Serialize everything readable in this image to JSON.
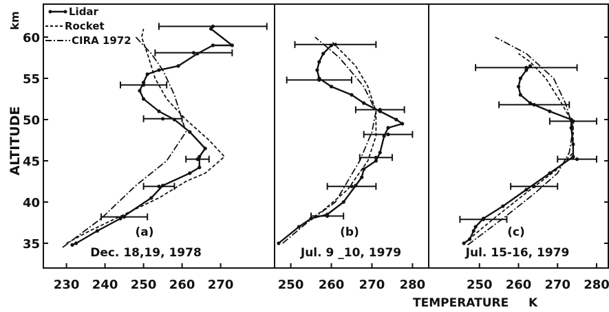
{
  "figure": {
    "y_axis_label": "ALTITUDE",
    "y_axis_unit": "km",
    "x_axis_label": "TEMPERATURE",
    "x_axis_unit": "K"
  },
  "legend": {
    "items": [
      {
        "label": "Lidar",
        "style": "solid-dots"
      },
      {
        "label": "Rocket",
        "style": "dashed"
      },
      {
        "label": "CIRA 1972",
        "style": "dash-dot"
      }
    ]
  },
  "chart_data": [
    {
      "type": "line",
      "panel_label": "(a)",
      "date": "Dec. 18,19, 1978",
      "xlabel": "TEMPERATURE K",
      "ylabel": "ALTITUDE km",
      "xlim": [
        224,
        284
      ],
      "ylim": [
        32,
        64
      ],
      "xticks": [
        230,
        240,
        250,
        260,
        270
      ],
      "yticks": [
        35,
        40,
        45,
        50,
        55,
        60
      ],
      "series": [
        {
          "name": "Lidar",
          "style": "solid-dots",
          "points": [
            [
              231.5,
              34.8
            ],
            [
              232.5,
              35.0
            ],
            [
              238,
              36.5
            ],
            [
              244,
              38
            ],
            [
              252,
              40.5
            ],
            [
              255,
              42
            ],
            [
              262,
              43.5
            ],
            [
              264.5,
              44.2
            ],
            [
              264.5,
              45.5
            ],
            [
              266,
              46.5
            ],
            [
              262,
              48.5
            ],
            [
              258,
              50
            ],
            [
              254,
              51
            ],
            [
              250,
              52.5
            ],
            [
              249,
              53.5
            ],
            [
              250,
              54.5
            ],
            [
              251,
              55.5
            ],
            [
              254,
              56
            ],
            [
              259,
              56.5
            ],
            [
              264,
              58
            ],
            [
              268,
              59
            ],
            [
              273,
              59
            ],
            [
              267.5,
              61
            ]
          ],
          "error_bars": [
            [
              245,
              38.2,
              6
            ],
            [
              254,
              41.9,
              4
            ],
            [
              264,
              45.2,
              3
            ],
            [
              255,
              50.1,
              5
            ],
            [
              250,
              54.2,
              6
            ],
            [
              263,
              58.1,
              10
            ],
            [
              268,
              61.3,
              14
            ]
          ]
        },
        {
          "name": "Rocket",
          "style": "dashed",
          "points": [
            [
              230,
              35
            ],
            [
              236,
              36.5
            ],
            [
              245,
              38.5
            ],
            [
              254,
              40.5
            ],
            [
              261,
              42.5
            ],
            [
              266,
              43.5
            ],
            [
              271,
              45.5
            ],
            [
              267,
              47.5
            ],
            [
              261,
              50
            ],
            [
              256,
              52.5
            ],
            [
              253,
              55
            ],
            [
              251,
              58
            ],
            [
              249.5,
              60
            ],
            [
              250,
              61
            ]
          ]
        },
        {
          "name": "CIRA 1972",
          "style": "dash-dot",
          "points": [
            [
              229,
              34.5
            ],
            [
              239,
              38
            ],
            [
              248,
              42
            ],
            [
              256,
              45
            ],
            [
              261,
              48.5
            ],
            [
              258,
              53
            ],
            [
              255,
              56
            ],
            [
              252,
              58
            ],
            [
              248,
              60
            ]
          ]
        }
      ]
    },
    {
      "type": "line",
      "panel_label": "(b)",
      "date": "Jul. 9 _10, 1979",
      "xlabel": "TEMPERATURE K",
      "ylabel": "ALTITUDE km",
      "xlim": [
        246,
        284
      ],
      "ylim": [
        32,
        64
      ],
      "xticks": [
        250,
        260,
        270,
        280
      ],
      "yticks": [
        35,
        40,
        45,
        50,
        55,
        60
      ],
      "series": [
        {
          "name": "Lidar",
          "style": "solid-dots",
          "points": [
            [
              247,
              35
            ],
            [
              252,
              37
            ],
            [
              255,
              38
            ],
            [
              259,
              38.5
            ],
            [
              263,
              40
            ],
            [
              266,
              42
            ],
            [
              267.5,
              43
            ],
            [
              268,
              44
            ],
            [
              271,
              45
            ],
            [
              272,
              46
            ],
            [
              273,
              48
            ],
            [
              274,
              49
            ],
            [
              277.5,
              49.5
            ],
            [
              276,
              50
            ],
            [
              272,
              51
            ],
            [
              268,
              52
            ],
            [
              265,
              53
            ],
            [
              260,
              54
            ],
            [
              257,
              55
            ],
            [
              256.5,
              56
            ],
            [
              257,
              57
            ],
            [
              258,
              58
            ],
            [
              260,
              59
            ]
          ],
          "error_bars": [
            [
              259,
              38.3,
              4
            ],
            [
              265,
              41.9,
              6
            ],
            [
              271,
              45.4,
              4
            ],
            [
              274,
              48.2,
              6
            ],
            [
              272,
              51.2,
              6
            ],
            [
              257,
              54.8,
              8
            ],
            [
              261,
              59.1,
              10
            ]
          ]
        },
        {
          "name": "Rocket",
          "style": "dashed",
          "points": [
            [
              247,
              35
            ],
            [
              252,
              37
            ],
            [
              258,
              39
            ],
            [
              264,
              41.5
            ],
            [
              269,
              45
            ],
            [
              271,
              48
            ],
            [
              271,
              51
            ],
            [
              269,
              54
            ],
            [
              266,
              56.5
            ],
            [
              263,
              58
            ],
            [
              260,
              59.5
            ]
          ]
        },
        {
          "name": "CIRA 1972",
          "style": "dash-dot",
          "points": [
            [
              248,
              35
            ],
            [
              254,
              37.5
            ],
            [
              261,
              40
            ],
            [
              267,
              45
            ],
            [
              270,
              48.5
            ],
            [
              271,
              51
            ],
            [
              268,
              54
            ],
            [
              262,
              57.5
            ],
            [
              256,
              60
            ]
          ]
        }
      ]
    },
    {
      "type": "line",
      "panel_label": "(c)",
      "date": "Jul. 15-16, 1979",
      "xlabel": "TEMPERATURE K",
      "ylabel": "ALTITUDE km",
      "xlim": [
        237,
        283
      ],
      "ylim": [
        32,
        64
      ],
      "xticks": [
        250,
        260,
        270,
        280
      ],
      "yticks": [
        35,
        40,
        45,
        50,
        55,
        60
      ],
      "series": [
        {
          "name": "Lidar",
          "style": "solid-dots",
          "points": [
            [
              246,
              35
            ],
            [
              247.5,
              35.5
            ],
            [
              248.5,
              36.5
            ],
            [
              249,
              37
            ],
            [
              251,
              38
            ],
            [
              256,
              39.5
            ],
            [
              262,
              41.5
            ],
            [
              268,
              43.5
            ],
            [
              274,
              45.5
            ],
            [
              274,
              47
            ],
            [
              273.5,
              49
            ],
            [
              273.5,
              50
            ],
            [
              268,
              51
            ],
            [
              263,
              52
            ],
            [
              260.5,
              53
            ],
            [
              260,
              54
            ],
            [
              260.5,
              55
            ],
            [
              262,
              56
            ],
            [
              263,
              56.5
            ]
          ],
          "error_bars": [
            [
              251,
              37.9,
              6
            ],
            [
              264,
              41.9,
              6
            ],
            [
              275,
              45.2,
              5
            ],
            [
              274,
              49.8,
              6
            ],
            [
              264,
              51.8,
              9
            ],
            [
              262,
              56.3,
              13
            ]
          ]
        },
        {
          "name": "Rocket",
          "style": "dashed",
          "points": [
            [
              246,
              35
            ],
            [
              255,
              38.5
            ],
            [
              263,
              41.5
            ],
            [
              270,
              44
            ],
            [
              274,
              46
            ],
            [
              274,
              49.5
            ],
            [
              271,
              52
            ],
            [
              267,
              55
            ],
            [
              263,
              57
            ],
            [
              260,
              58
            ]
          ]
        },
        {
          "name": "CIRA 1972",
          "style": "dash-dot",
          "points": [
            [
              247,
              34.8
            ],
            [
              256,
              38
            ],
            [
              264,
              41
            ],
            [
              270,
              43.5
            ],
            [
              273,
              46
            ],
            [
              274,
              49
            ],
            [
              272,
              52
            ],
            [
              269,
              55
            ],
            [
              262,
              58
            ],
            [
              254,
              60
            ]
          ]
        }
      ]
    }
  ]
}
